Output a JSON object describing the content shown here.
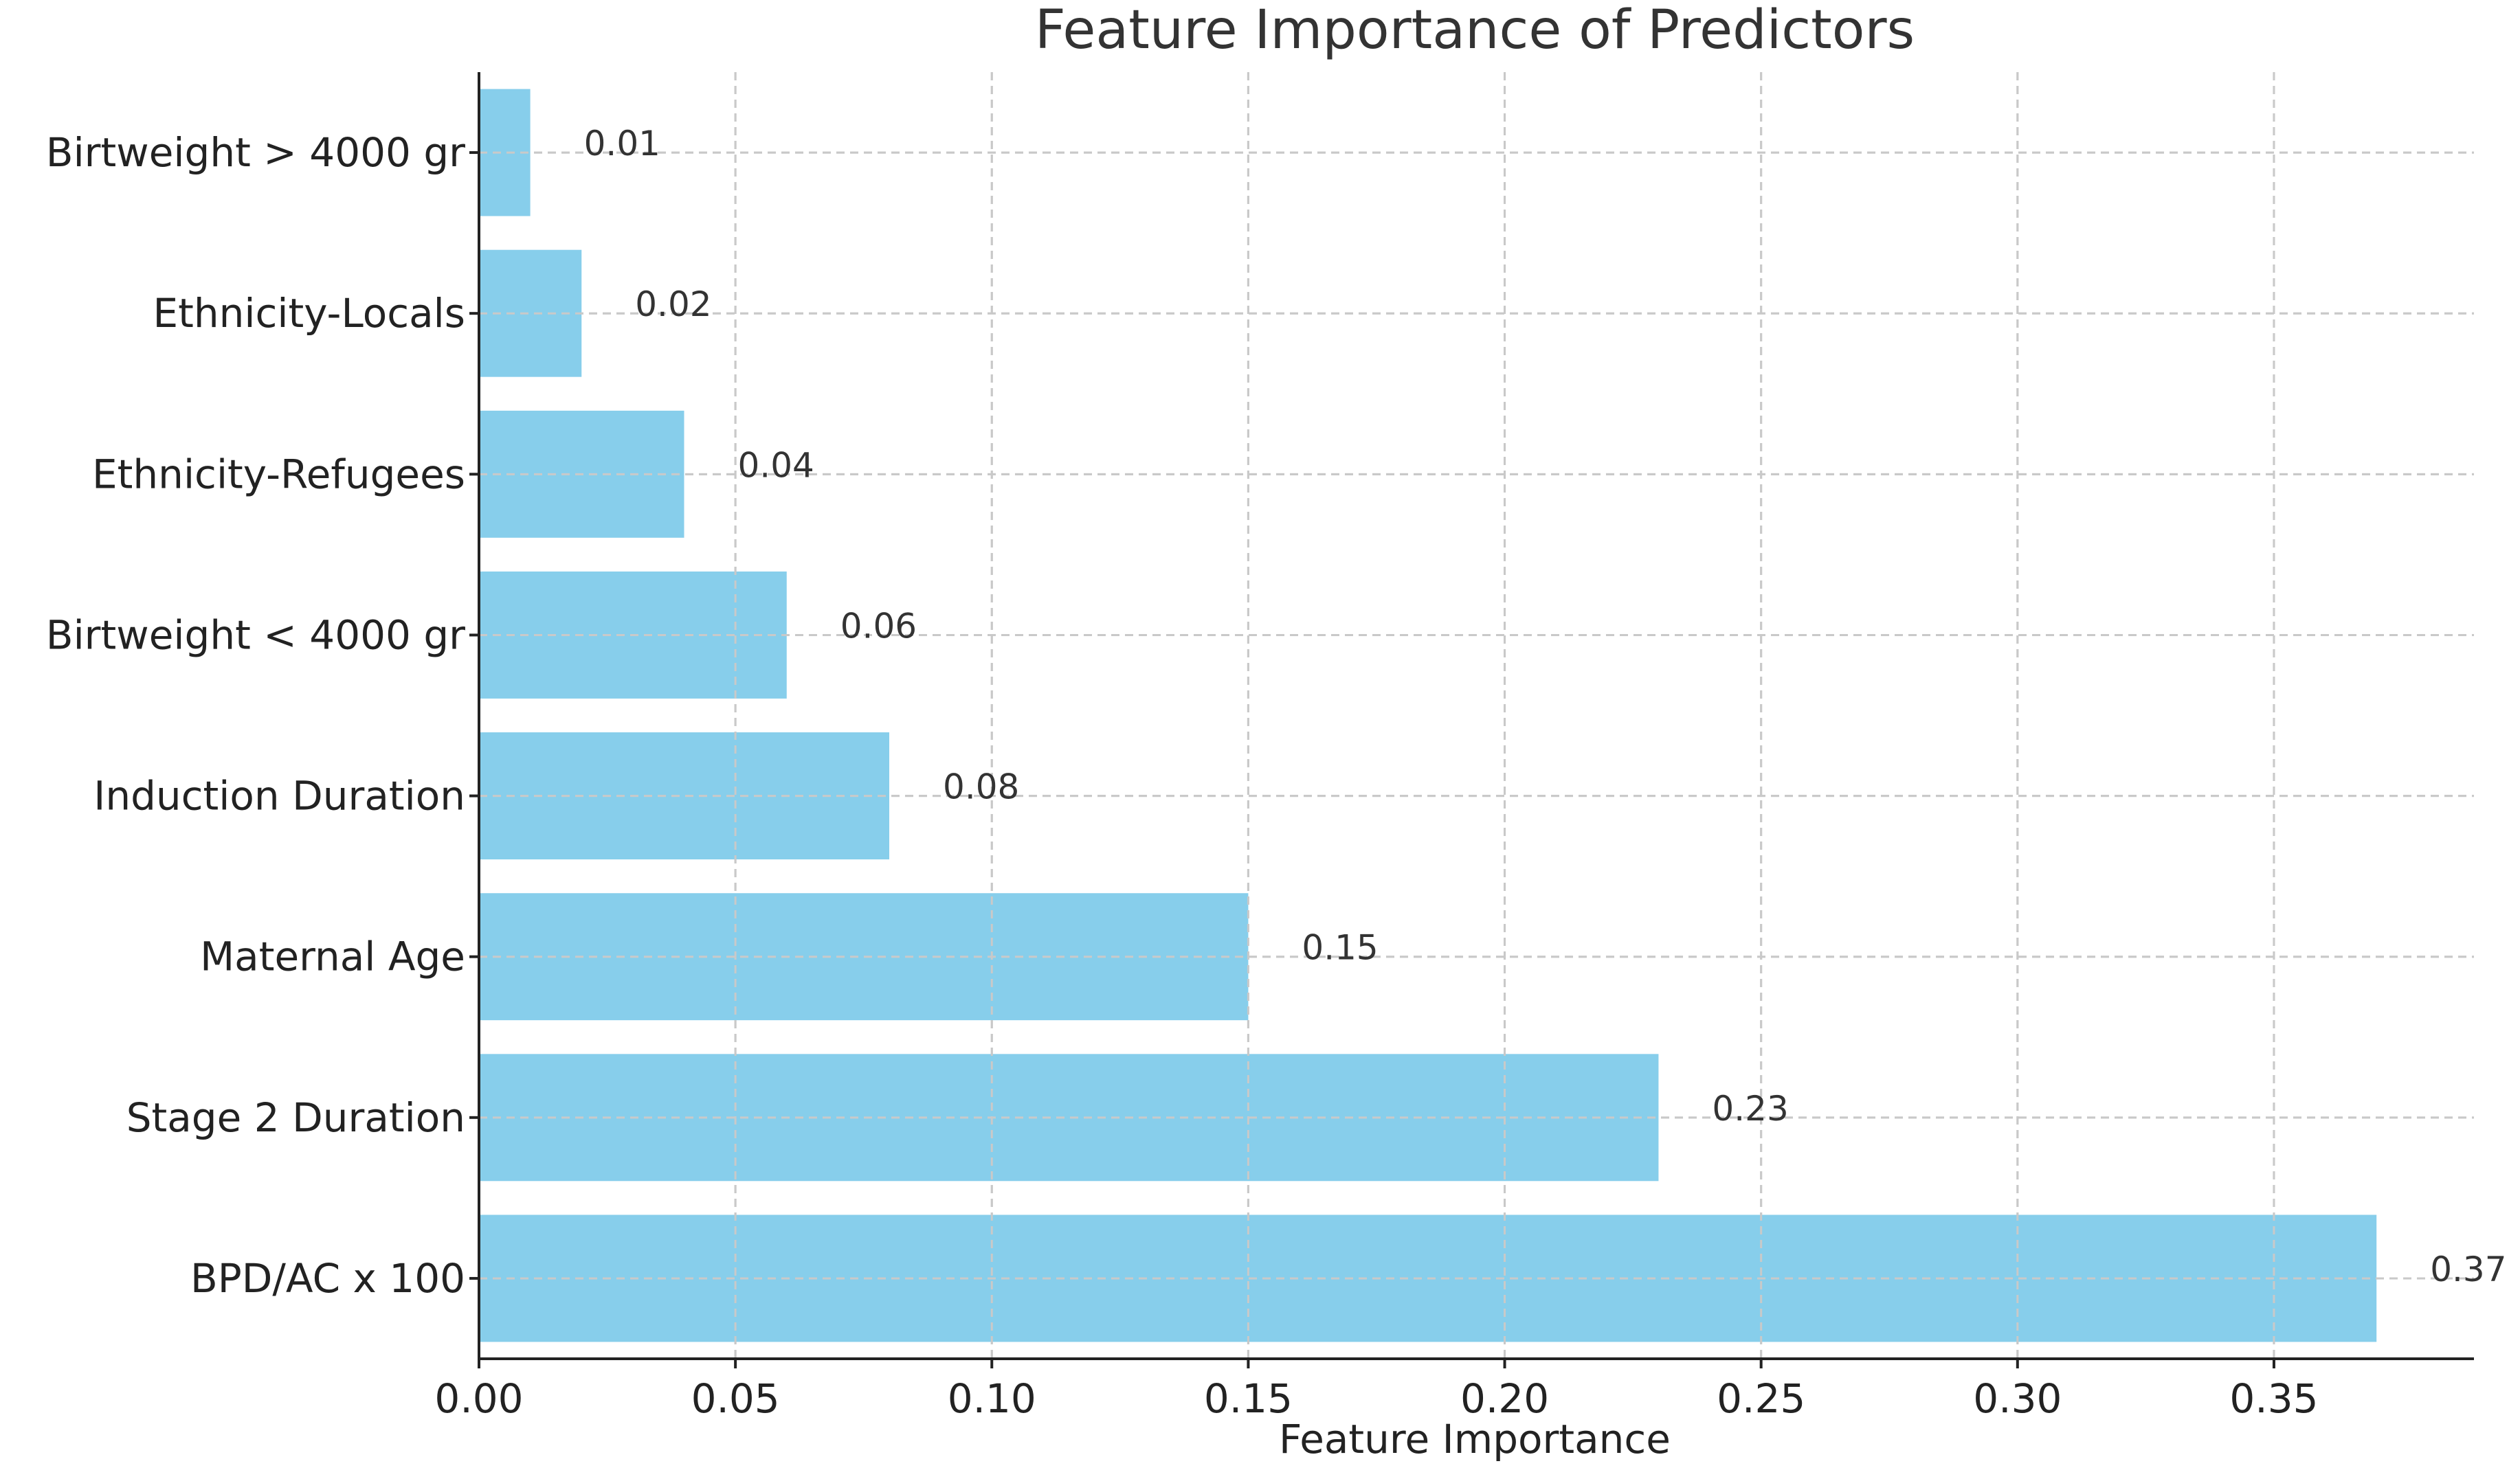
{
  "chart_data": {
    "type": "bar",
    "orientation": "horizontal",
    "title": "Feature Importance of Predictors",
    "xlabel": "Feature Importance",
    "ylabel": "",
    "categories": [
      "Birtweight > 4000 gr",
      "Ethnicity-Locals",
      "Ethnicity-Refugees",
      "Birtweight < 4000 gr",
      "Induction Duration",
      "Maternal Age",
      "Stage 2 Duration",
      "BPD/AC x 100"
    ],
    "values": [
      0.01,
      0.02,
      0.04,
      0.06,
      0.08,
      0.15,
      0.23,
      0.37
    ],
    "data_labels": [
      "0.01",
      "0.02",
      "0.04",
      "0.06",
      "0.08",
      "0.15",
      "0.23",
      "0.37"
    ],
    "xlim": [
      0,
      0.389
    ],
    "xticks": [
      0.0,
      0.05,
      0.1,
      0.15,
      0.2,
      0.25,
      0.3,
      0.35
    ],
    "xtick_labels": [
      "0.00",
      "0.05",
      "0.10",
      "0.15",
      "0.20",
      "0.25",
      "0.30",
      "0.35"
    ],
    "grid": true,
    "legend": "none",
    "colors": {
      "bar": "#87ceeb",
      "grid": "#c9c9c9",
      "axis": "#222222",
      "text": "#222222"
    }
  }
}
